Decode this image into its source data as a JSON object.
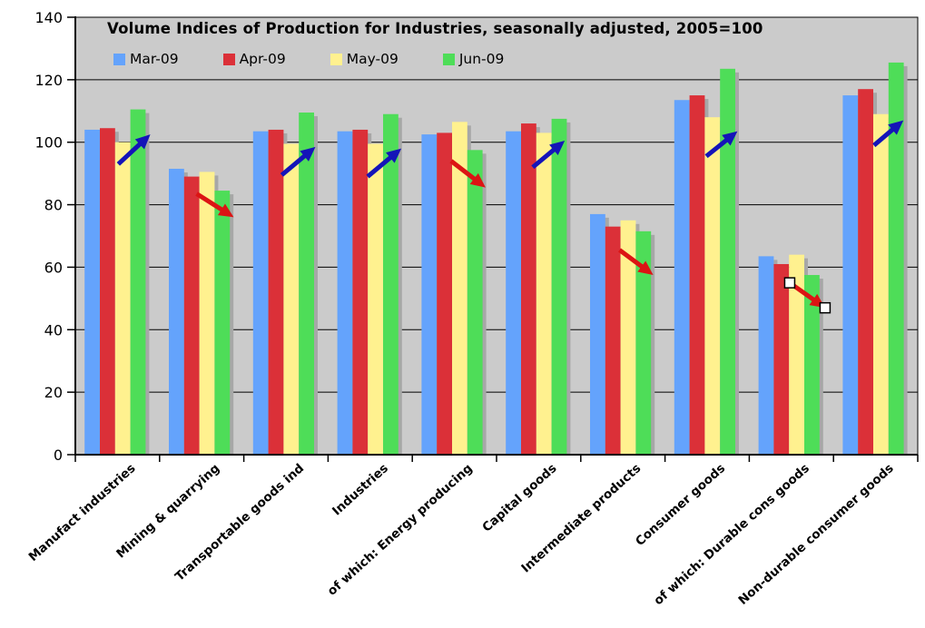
{
  "chart_data": {
    "type": "bar",
    "title": "Volume Indices of Production for Industries, seasonally adjusted, 2005=100",
    "categories": [
      "Manufact industries",
      "Mining & quarrying",
      "Transportable goods ind",
      "Industries",
      "of which: Energy producing",
      "Capital goods",
      "Intermediate products",
      "Consumer goods",
      "of which: Durable cons goods",
      "Non-durable consumer goods"
    ],
    "series": [
      {
        "name": "Mar-09",
        "color": "#64A3FC",
        "values": [
          104,
          91.5,
          103.5,
          103.5,
          102.5,
          103.5,
          77,
          113.5,
          63.5,
          115
        ]
      },
      {
        "name": "Apr-09",
        "color": "#DB3038",
        "values": [
          104.5,
          89,
          104,
          104,
          103,
          106,
          73,
          115,
          61,
          117
        ]
      },
      {
        "name": "May-09",
        "color": "#FFF18F",
        "values": [
          100,
          90.5,
          99.5,
          99.5,
          106.5,
          103,
          75,
          108,
          64,
          109
        ]
      },
      {
        "name": "Jun-09",
        "color": "#4EDD58",
        "values": [
          110.5,
          84.5,
          109.5,
          109,
          97.5,
          107.5,
          71.5,
          123.5,
          57.5,
          125.5
        ]
      }
    ],
    "xlabel": "",
    "ylabel": "",
    "ylim": [
      0,
      140
    ],
    "yticks": [
      0,
      20,
      40,
      60,
      80,
      100,
      120,
      140
    ],
    "grid": true,
    "legend_position": "top-left inside plot area",
    "plot_background": "#CBCBCB",
    "bar_shadow_color": "#A7A7A7",
    "annotations": {
      "trend_arrows": [
        {
          "category_index": 0,
          "direction": "up",
          "color": "#1414B8",
          "from": {
            "x_frac": 0.51,
            "value": 93
          },
          "to": {
            "x_frac": 0.89,
            "value": 102.5
          },
          "selected": false
        },
        {
          "category_index": 1,
          "direction": "down",
          "color": "#DC1414",
          "from": {
            "x_frac": 0.44,
            "value": 83.5
          },
          "to": {
            "x_frac": 0.88,
            "value": 76
          },
          "selected": false
        },
        {
          "category_index": 2,
          "direction": "up",
          "color": "#1414B8",
          "from": {
            "x_frac": 0.45,
            "value": 89.5
          },
          "to": {
            "x_frac": 0.85,
            "value": 98.5
          },
          "selected": false
        },
        {
          "category_index": 3,
          "direction": "up",
          "color": "#1414B8",
          "from": {
            "x_frac": 0.47,
            "value": 89
          },
          "to": {
            "x_frac": 0.87,
            "value": 98
          },
          "selected": false
        },
        {
          "category_index": 4,
          "direction": "down",
          "color": "#DC1414",
          "from": {
            "x_frac": 0.46,
            "value": 94
          },
          "to": {
            "x_frac": 0.87,
            "value": 85.5
          },
          "selected": false
        },
        {
          "category_index": 5,
          "direction": "up",
          "color": "#1414B8",
          "from": {
            "x_frac": 0.43,
            "value": 92
          },
          "to": {
            "x_frac": 0.81,
            "value": 100.5
          },
          "selected": false
        },
        {
          "category_index": 6,
          "direction": "down",
          "color": "#DC1414",
          "from": {
            "x_frac": 0.46,
            "value": 65.5
          },
          "to": {
            "x_frac": 0.86,
            "value": 57.5
          },
          "selected": false
        },
        {
          "category_index": 7,
          "direction": "up",
          "color": "#1414B8",
          "from": {
            "x_frac": 0.49,
            "value": 95.5
          },
          "to": {
            "x_frac": 0.86,
            "value": 103.5
          },
          "selected": false
        },
        {
          "category_index": 8,
          "direction": "down",
          "color": "#DC1414",
          "from": {
            "x_frac": 0.48,
            "value": 55
          },
          "to": {
            "x_frac": 0.9,
            "value": 47
          },
          "selected": true
        },
        {
          "category_index": 9,
          "direction": "up",
          "color": "#1414B8",
          "from": {
            "x_frac": 0.48,
            "value": 99
          },
          "to": {
            "x_frac": 0.83,
            "value": 107
          },
          "selected": false
        }
      ]
    }
  }
}
